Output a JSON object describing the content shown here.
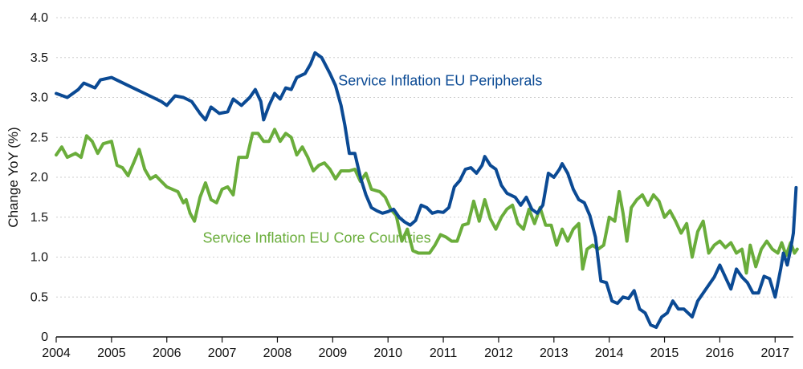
{
  "chart_data": {
    "type": "line",
    "title": "",
    "xlabel": "",
    "ylabel": "Change YoY (%)",
    "xlim": [
      2004,
      2017.33
    ],
    "ylim": [
      0,
      4
    ],
    "x_ticks": [
      "2004",
      "2005",
      "2006",
      "2007",
      "2008",
      "2009",
      "2010",
      "2011",
      "2012",
      "2013",
      "2014",
      "2015",
      "2016",
      "2017"
    ],
    "y_ticks": [
      "0",
      "0.5",
      "1.0",
      "1.5",
      "2.0",
      "2.5",
      "3.0",
      "3.5",
      "4.0"
    ],
    "grid": "horizontal",
    "series": [
      {
        "name": "Service Inflation EU Peripherals",
        "color": "#0b4a94",
        "points": [
          [
            2004.0,
            3.05
          ],
          [
            2004.2,
            3.0
          ],
          [
            2004.4,
            3.1
          ],
          [
            2004.5,
            3.18
          ],
          [
            2004.7,
            3.12
          ],
          [
            2004.8,
            3.22
          ],
          [
            2005.0,
            3.25
          ],
          [
            2005.15,
            3.2
          ],
          [
            2005.3,
            3.15
          ],
          [
            2005.45,
            3.1
          ],
          [
            2005.6,
            3.05
          ],
          [
            2005.75,
            3.0
          ],
          [
            2005.9,
            2.95
          ],
          [
            2006.0,
            2.9
          ],
          [
            2006.15,
            3.02
          ],
          [
            2006.3,
            3.0
          ],
          [
            2006.45,
            2.95
          ],
          [
            2006.6,
            2.8
          ],
          [
            2006.7,
            2.72
          ],
          [
            2006.8,
            2.88
          ],
          [
            2006.95,
            2.8
          ],
          [
            2007.1,
            2.82
          ],
          [
            2007.2,
            2.98
          ],
          [
            2007.35,
            2.9
          ],
          [
            2007.5,
            3.0
          ],
          [
            2007.6,
            3.1
          ],
          [
            2007.7,
            2.95
          ],
          [
            2007.75,
            2.72
          ],
          [
            2007.85,
            2.9
          ],
          [
            2007.95,
            3.05
          ],
          [
            2008.05,
            2.98
          ],
          [
            2008.15,
            3.12
          ],
          [
            2008.25,
            3.1
          ],
          [
            2008.35,
            3.25
          ],
          [
            2008.5,
            3.3
          ],
          [
            2008.6,
            3.42
          ],
          [
            2008.68,
            3.56
          ],
          [
            2008.8,
            3.5
          ],
          [
            2008.95,
            3.3
          ],
          [
            2009.05,
            3.15
          ],
          [
            2009.15,
            2.9
          ],
          [
            2009.22,
            2.65
          ],
          [
            2009.3,
            2.3
          ],
          [
            2009.4,
            2.3
          ],
          [
            2009.5,
            2.0
          ],
          [
            2009.6,
            1.78
          ],
          [
            2009.7,
            1.62
          ],
          [
            2009.8,
            1.58
          ],
          [
            2009.9,
            1.55
          ],
          [
            2010.0,
            1.57
          ],
          [
            2010.1,
            1.6
          ],
          [
            2010.2,
            1.5
          ],
          [
            2010.3,
            1.44
          ],
          [
            2010.4,
            1.4
          ],
          [
            2010.5,
            1.46
          ],
          [
            2010.6,
            1.65
          ],
          [
            2010.7,
            1.62
          ],
          [
            2010.8,
            1.55
          ],
          [
            2010.9,
            1.57
          ],
          [
            2011.0,
            1.56
          ],
          [
            2011.1,
            1.62
          ],
          [
            2011.2,
            1.88
          ],
          [
            2011.3,
            1.96
          ],
          [
            2011.4,
            2.1
          ],
          [
            2011.5,
            2.12
          ],
          [
            2011.6,
            2.05
          ],
          [
            2011.7,
            2.15
          ],
          [
            2011.75,
            2.26
          ],
          [
            2011.85,
            2.15
          ],
          [
            2011.95,
            2.1
          ],
          [
            2012.05,
            1.9
          ],
          [
            2012.15,
            1.8
          ],
          [
            2012.3,
            1.75
          ],
          [
            2012.4,
            1.65
          ],
          [
            2012.5,
            1.75
          ],
          [
            2012.6,
            1.6
          ],
          [
            2012.7,
            1.55
          ],
          [
            2012.8,
            1.65
          ],
          [
            2012.9,
            2.05
          ],
          [
            2013.0,
            2.0
          ],
          [
            2013.1,
            2.1
          ],
          [
            2013.15,
            2.17
          ],
          [
            2013.25,
            2.05
          ],
          [
            2013.35,
            1.85
          ],
          [
            2013.45,
            1.72
          ],
          [
            2013.55,
            1.68
          ],
          [
            2013.65,
            1.52
          ],
          [
            2013.75,
            1.25
          ],
          [
            2013.85,
            0.7
          ],
          [
            2013.95,
            0.68
          ],
          [
            2014.05,
            0.45
          ],
          [
            2014.15,
            0.42
          ],
          [
            2014.25,
            0.5
          ],
          [
            2014.35,
            0.48
          ],
          [
            2014.45,
            0.58
          ],
          [
            2014.55,
            0.35
          ],
          [
            2014.65,
            0.3
          ],
          [
            2014.75,
            0.15
          ],
          [
            2014.85,
            0.12
          ],
          [
            2014.95,
            0.25
          ],
          [
            2015.05,
            0.3
          ],
          [
            2015.15,
            0.45
          ],
          [
            2015.25,
            0.35
          ],
          [
            2015.35,
            0.35
          ],
          [
            2015.5,
            0.25
          ],
          [
            2015.6,
            0.45
          ],
          [
            2015.75,
            0.6
          ],
          [
            2015.9,
            0.75
          ],
          [
            2016.0,
            0.9
          ],
          [
            2016.1,
            0.75
          ],
          [
            2016.2,
            0.6
          ],
          [
            2016.3,
            0.85
          ],
          [
            2016.4,
            0.75
          ],
          [
            2016.5,
            0.68
          ],
          [
            2016.6,
            0.55
          ],
          [
            2016.7,
            0.55
          ],
          [
            2016.8,
            0.76
          ],
          [
            2016.9,
            0.73
          ],
          [
            2017.0,
            0.5
          ],
          [
            2017.1,
            0.85
          ],
          [
            2017.15,
            1.05
          ],
          [
            2017.22,
            0.9
          ],
          [
            2017.28,
            1.1
          ],
          [
            2017.33,
            1.3
          ],
          [
            2017.38,
            1.87
          ]
        ]
      },
      {
        "name": "Service Inflation EU Core Countries",
        "color": "#6aad3b",
        "points": [
          [
            2004.0,
            2.28
          ],
          [
            2004.1,
            2.38
          ],
          [
            2004.2,
            2.25
          ],
          [
            2004.35,
            2.3
          ],
          [
            2004.45,
            2.25
          ],
          [
            2004.55,
            2.52
          ],
          [
            2004.65,
            2.45
          ],
          [
            2004.75,
            2.3
          ],
          [
            2004.85,
            2.42
          ],
          [
            2005.0,
            2.45
          ],
          [
            2005.1,
            2.15
          ],
          [
            2005.2,
            2.12
          ],
          [
            2005.3,
            2.02
          ],
          [
            2005.4,
            2.18
          ],
          [
            2005.5,
            2.35
          ],
          [
            2005.6,
            2.1
          ],
          [
            2005.7,
            1.98
          ],
          [
            2005.8,
            2.02
          ],
          [
            2005.9,
            1.95
          ],
          [
            2006.0,
            1.88
          ],
          [
            2006.1,
            1.85
          ],
          [
            2006.2,
            1.82
          ],
          [
            2006.3,
            1.68
          ],
          [
            2006.35,
            1.72
          ],
          [
            2006.42,
            1.55
          ],
          [
            2006.5,
            1.45
          ],
          [
            2006.6,
            1.75
          ],
          [
            2006.7,
            1.93
          ],
          [
            2006.8,
            1.72
          ],
          [
            2006.9,
            1.68
          ],
          [
            2007.0,
            1.85
          ],
          [
            2007.1,
            1.88
          ],
          [
            2007.2,
            1.78
          ],
          [
            2007.3,
            2.25
          ],
          [
            2007.45,
            2.25
          ],
          [
            2007.55,
            2.55
          ],
          [
            2007.65,
            2.55
          ],
          [
            2007.75,
            2.45
          ],
          [
            2007.85,
            2.45
          ],
          [
            2007.95,
            2.6
          ],
          [
            2008.05,
            2.45
          ],
          [
            2008.15,
            2.55
          ],
          [
            2008.25,
            2.5
          ],
          [
            2008.35,
            2.28
          ],
          [
            2008.45,
            2.38
          ],
          [
            2008.55,
            2.25
          ],
          [
            2008.65,
            2.08
          ],
          [
            2008.75,
            2.15
          ],
          [
            2008.85,
            2.18
          ],
          [
            2008.95,
            2.1
          ],
          [
            2009.05,
            1.98
          ],
          [
            2009.15,
            2.08
          ],
          [
            2009.3,
            2.08
          ],
          [
            2009.4,
            2.1
          ],
          [
            2009.5,
            1.95
          ],
          [
            2009.6,
            2.05
          ],
          [
            2009.7,
            1.85
          ],
          [
            2009.85,
            1.82
          ],
          [
            2009.95,
            1.75
          ],
          [
            2010.05,
            1.6
          ],
          [
            2010.15,
            1.52
          ],
          [
            2010.25,
            1.2
          ],
          [
            2010.35,
            1.35
          ],
          [
            2010.45,
            1.08
          ],
          [
            2010.55,
            1.05
          ],
          [
            2010.65,
            1.05
          ],
          [
            2010.75,
            1.05
          ],
          [
            2010.85,
            1.15
          ],
          [
            2010.95,
            1.28
          ],
          [
            2011.05,
            1.25
          ],
          [
            2011.15,
            1.2
          ],
          [
            2011.25,
            1.2
          ],
          [
            2011.35,
            1.4
          ],
          [
            2011.45,
            1.42
          ],
          [
            2011.55,
            1.7
          ],
          [
            2011.65,
            1.45
          ],
          [
            2011.75,
            1.72
          ],
          [
            2011.85,
            1.48
          ],
          [
            2011.95,
            1.35
          ],
          [
            2012.05,
            1.5
          ],
          [
            2012.15,
            1.6
          ],
          [
            2012.25,
            1.65
          ],
          [
            2012.35,
            1.42
          ],
          [
            2012.45,
            1.35
          ],
          [
            2012.55,
            1.6
          ],
          [
            2012.65,
            1.42
          ],
          [
            2012.75,
            1.62
          ],
          [
            2012.85,
            1.4
          ],
          [
            2012.95,
            1.4
          ],
          [
            2013.05,
            1.15
          ],
          [
            2013.15,
            1.35
          ],
          [
            2013.25,
            1.2
          ],
          [
            2013.35,
            1.35
          ],
          [
            2013.45,
            1.42
          ],
          [
            2013.52,
            0.85
          ],
          [
            2013.6,
            1.1
          ],
          [
            2013.7,
            1.15
          ],
          [
            2013.8,
            1.1
          ],
          [
            2013.9,
            1.15
          ],
          [
            2014.0,
            1.5
          ],
          [
            2014.1,
            1.45
          ],
          [
            2014.18,
            1.82
          ],
          [
            2014.25,
            1.55
          ],
          [
            2014.32,
            1.2
          ],
          [
            2014.4,
            1.62
          ],
          [
            2014.5,
            1.72
          ],
          [
            2014.6,
            1.78
          ],
          [
            2014.7,
            1.65
          ],
          [
            2014.8,
            1.78
          ],
          [
            2014.9,
            1.7
          ],
          [
            2015.0,
            1.5
          ],
          [
            2015.1,
            1.58
          ],
          [
            2015.2,
            1.45
          ],
          [
            2015.3,
            1.3
          ],
          [
            2015.4,
            1.42
          ],
          [
            2015.5,
            1.0
          ],
          [
            2015.6,
            1.32
          ],
          [
            2015.7,
            1.45
          ],
          [
            2015.8,
            1.05
          ],
          [
            2015.9,
            1.15
          ],
          [
            2016.0,
            1.2
          ],
          [
            2016.1,
            1.12
          ],
          [
            2016.2,
            1.18
          ],
          [
            2016.3,
            1.05
          ],
          [
            2016.4,
            1.1
          ],
          [
            2016.48,
            0.8
          ],
          [
            2016.55,
            1.15
          ],
          [
            2016.65,
            0.88
          ],
          [
            2016.75,
            1.1
          ],
          [
            2016.85,
            1.2
          ],
          [
            2016.95,
            1.1
          ],
          [
            2017.05,
            1.05
          ],
          [
            2017.12,
            1.18
          ],
          [
            2017.2,
            1.02
          ],
          [
            2017.28,
            1.18
          ],
          [
            2017.35,
            1.05
          ],
          [
            2017.4,
            1.1
          ]
        ]
      }
    ],
    "annotations": [
      {
        "text": "Service Inflation EU Peripherals",
        "x": 2009.1,
        "y": 3.15,
        "color": "#0b4a94"
      },
      {
        "text": "Service Inflation EU Core Countries",
        "x": 2006.65,
        "y": 1.18,
        "color": "#6aad3b"
      }
    ]
  }
}
